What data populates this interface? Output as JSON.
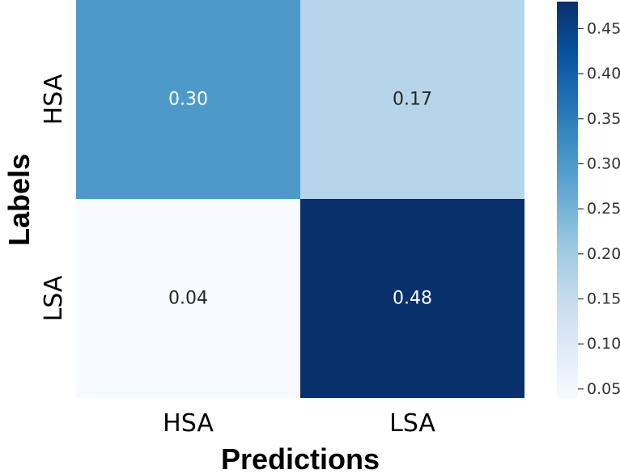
{
  "chart_data": {
    "type": "heatmap",
    "title": "",
    "xlabel": "Predictions",
    "ylabel": "Labels",
    "x_categories": [
      "HSA",
      "LSA"
    ],
    "y_categories": [
      "HSA",
      "LSA"
    ],
    "values": [
      [
        0.3,
        0.17
      ],
      [
        0.04,
        0.48
      ]
    ],
    "value_labels": [
      [
        "0.30",
        "0.17"
      ],
      [
        "0.04",
        "0.48"
      ]
    ],
    "colorbar": {
      "range": [
        0.04,
        0.48
      ],
      "ticks": [
        0.05,
        0.1,
        0.15,
        0.2,
        0.25,
        0.3,
        0.35,
        0.4,
        0.45
      ],
      "tick_labels": [
        "0.05",
        "0.10",
        "0.15",
        "0.20",
        "0.25",
        "0.30",
        "0.35",
        "0.40",
        "0.45"
      ],
      "colormap": "Blues",
      "color_stops": [
        "#f7fbff",
        "#deebf7",
        "#c6dbef",
        "#9ecae1",
        "#6baed6",
        "#4292c6",
        "#2171b5",
        "#08519c",
        "#08306b"
      ]
    }
  }
}
